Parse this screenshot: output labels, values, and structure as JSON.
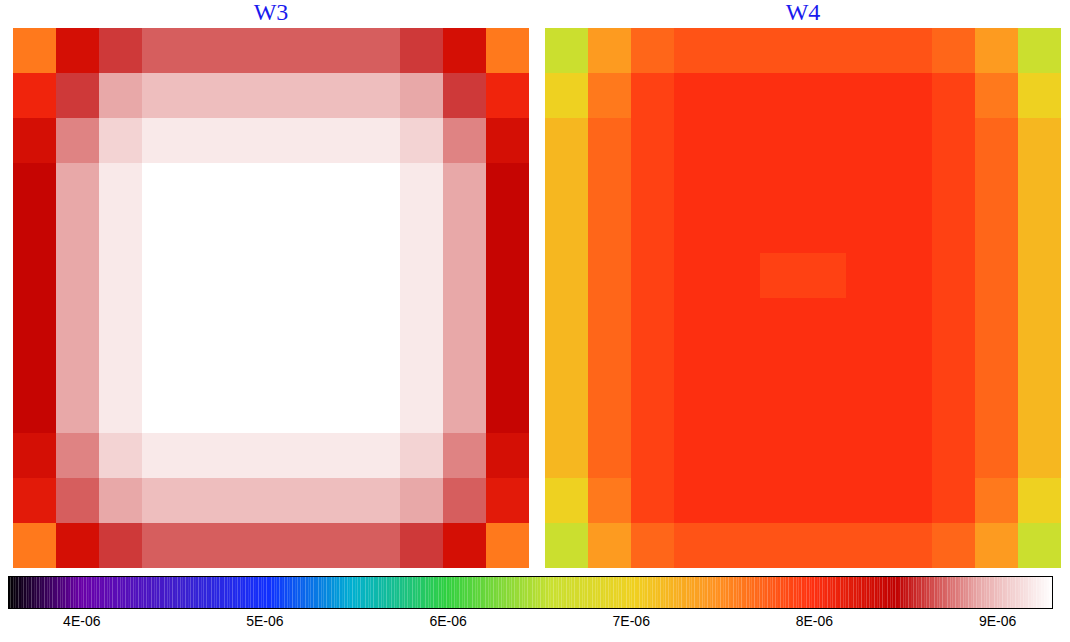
{
  "chart_data": [
    {
      "type": "heatmap",
      "title": "W3",
      "cells": [
        [
          7.6e-06,
          8.3e-06,
          8.6e-06,
          8.7e-06,
          8.7e-06,
          8.7e-06,
          8.7e-06,
          8.7e-06,
          8.7e-06,
          8.6e-06,
          8.3e-06,
          7.6e-06
        ],
        [
          8.1e-06,
          8.6e-06,
          8.9e-06,
          9e-06,
          9e-06,
          9e-06,
          9e-06,
          9e-06,
          9e-06,
          8.9e-06,
          8.6e-06,
          8.1e-06
        ],
        [
          8.3e-06,
          8.8e-06,
          9.1e-06,
          9.2e-06,
          9.2e-06,
          9.2e-06,
          9.2e-06,
          9.2e-06,
          9.2e-06,
          9.1e-06,
          8.8e-06,
          8.3e-06
        ],
        [
          8.4e-06,
          8.9e-06,
          9.2e-06,
          9.3e-06,
          9.3e-06,
          9.3e-06,
          9.3e-06,
          9.3e-06,
          9.3e-06,
          9.2e-06,
          8.9e-06,
          8.4e-06
        ],
        [
          8.4e-06,
          8.9e-06,
          9.2e-06,
          9.3e-06,
          9.3e-06,
          9.3e-06,
          9.3e-06,
          9.3e-06,
          9.3e-06,
          9.2e-06,
          8.9e-06,
          8.4e-06
        ],
        [
          8.4e-06,
          8.9e-06,
          9.2e-06,
          9.3e-06,
          9.3e-06,
          9.3e-06,
          9.3e-06,
          9.3e-06,
          9.3e-06,
          9.2e-06,
          8.9e-06,
          8.4e-06
        ],
        [
          8.4e-06,
          8.9e-06,
          9.2e-06,
          9.3e-06,
          9.3e-06,
          9.3e-06,
          9.3e-06,
          9.3e-06,
          9.3e-06,
          9.2e-06,
          8.9e-06,
          8.4e-06
        ],
        [
          8.4e-06,
          8.9e-06,
          9.2e-06,
          9.3e-06,
          9.3e-06,
          9.3e-06,
          9.3e-06,
          9.3e-06,
          9.3e-06,
          9.2e-06,
          8.9e-06,
          8.4e-06
        ],
        [
          8.4e-06,
          8.9e-06,
          9.2e-06,
          9.3e-06,
          9.3e-06,
          9.3e-06,
          9.3e-06,
          9.3e-06,
          9.3e-06,
          9.2e-06,
          8.9e-06,
          8.4e-06
        ],
        [
          8.3e-06,
          8.8e-06,
          9.1e-06,
          9.2e-06,
          9.2e-06,
          9.2e-06,
          9.2e-06,
          9.2e-06,
          9.2e-06,
          9.1e-06,
          8.8e-06,
          8.3e-06
        ],
        [
          8.2e-06,
          8.7e-06,
          8.9e-06,
          9e-06,
          9e-06,
          9e-06,
          9e-06,
          9e-06,
          9e-06,
          8.9e-06,
          8.7e-06,
          8.2e-06
        ],
        [
          7.6e-06,
          8.3e-06,
          8.6e-06,
          8.7e-06,
          8.7e-06,
          8.7e-06,
          8.7e-06,
          8.7e-06,
          8.7e-06,
          8.6e-06,
          8.3e-06,
          7.6e-06
        ]
      ]
    },
    {
      "type": "heatmap",
      "title": "W4",
      "cells": [
        [
          6.6e-06,
          7.4e-06,
          7.7e-06,
          7.8e-06,
          7.8e-06,
          7.8e-06,
          7.8e-06,
          7.8e-06,
          7.8e-06,
          7.7e-06,
          7.4e-06,
          6.6e-06
        ],
        [
          7e-06,
          7.6e-06,
          7.9e-06,
          8e-06,
          8e-06,
          8e-06,
          8e-06,
          8e-06,
          8e-06,
          7.9e-06,
          7.6e-06,
          7e-06
        ],
        [
          7.2e-06,
          7.7e-06,
          7.9e-06,
          8e-06,
          8e-06,
          8e-06,
          8e-06,
          8e-06,
          8e-06,
          7.9e-06,
          7.7e-06,
          7.2e-06
        ],
        [
          7.2e-06,
          7.7e-06,
          7.9e-06,
          8e-06,
          8e-06,
          8e-06,
          8e-06,
          8e-06,
          8e-06,
          7.9e-06,
          7.7e-06,
          7.2e-06
        ],
        [
          7.2e-06,
          7.7e-06,
          7.9e-06,
          8e-06,
          8e-06,
          8e-06,
          8e-06,
          8e-06,
          8e-06,
          7.9e-06,
          7.7e-06,
          7.2e-06
        ],
        [
          7.2e-06,
          7.7e-06,
          7.9e-06,
          8e-06,
          8e-06,
          7.9e-06,
          7.9e-06,
          8e-06,
          8e-06,
          7.9e-06,
          7.7e-06,
          7.2e-06
        ],
        [
          7.2e-06,
          7.7e-06,
          7.9e-06,
          8e-06,
          8e-06,
          8e-06,
          8e-06,
          8e-06,
          8e-06,
          7.9e-06,
          7.7e-06,
          7.2e-06
        ],
        [
          7.2e-06,
          7.7e-06,
          7.9e-06,
          8e-06,
          8e-06,
          8e-06,
          8e-06,
          8e-06,
          8e-06,
          7.9e-06,
          7.7e-06,
          7.2e-06
        ],
        [
          7.2e-06,
          7.7e-06,
          7.9e-06,
          8e-06,
          8e-06,
          8e-06,
          8e-06,
          8e-06,
          8e-06,
          7.9e-06,
          7.7e-06,
          7.2e-06
        ],
        [
          7.2e-06,
          7.7e-06,
          7.9e-06,
          8e-06,
          8e-06,
          8e-06,
          8e-06,
          8e-06,
          8e-06,
          7.9e-06,
          7.7e-06,
          7.2e-06
        ],
        [
          7e-06,
          7.6e-06,
          7.9e-06,
          8e-06,
          8e-06,
          8e-06,
          8e-06,
          8e-06,
          8e-06,
          7.9e-06,
          7.6e-06,
          7e-06
        ],
        [
          6.6e-06,
          7.4e-06,
          7.7e-06,
          7.8e-06,
          7.8e-06,
          7.8e-06,
          7.8e-06,
          7.8e-06,
          7.8e-06,
          7.7e-06,
          7.4e-06,
          6.6e-06
        ]
      ]
    }
  ],
  "colorbar": {
    "range": [
      3.6e-06,
      9.3e-06
    ],
    "ticks": [
      {
        "value": 4e-06,
        "label": "4E-06"
      },
      {
        "value": 5e-06,
        "label": "5E-06"
      },
      {
        "value": 6e-06,
        "label": "6E-06"
      },
      {
        "value": 7e-06,
        "label": "7E-06"
      },
      {
        "value": 8e-06,
        "label": "8E-06"
      },
      {
        "value": 9e-06,
        "label": "9E-06"
      }
    ]
  }
}
